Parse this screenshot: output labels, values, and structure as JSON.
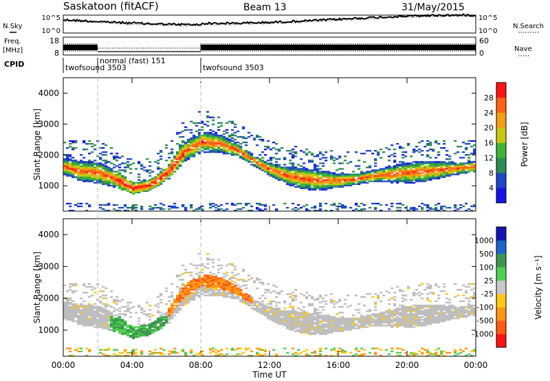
{
  "header": {
    "site": "Saskatoon (fitACF)",
    "beam": "Beam 13",
    "date": "31/May/2015"
  },
  "left_labels": {
    "nsky": "N.Sky",
    "freq_top": "Freq.",
    "freq_unit": "[MHz]",
    "cpid": "CPID"
  },
  "right_labels": {
    "nsearch": "N.Search",
    "nave": "Nave"
  },
  "noise_axis": {
    "top": "10^5",
    "bottom": "10^0"
  },
  "freq_axis": {
    "left_top": "18",
    "left_bottom": "8",
    "right_top": "60",
    "right_bottom": "0"
  },
  "cpid_segments": [
    {
      "label": "twofsound 3503",
      "start": 0,
      "end": 2
    },
    {
      "label": "normal (fast) 151",
      "start": 2,
      "end": 8
    },
    {
      "label": "twofsound 3503",
      "start": 8,
      "end": 24
    }
  ],
  "x_axis": {
    "label": "Time UT",
    "ticks": [
      "00:00",
      "04:00",
      "08:00",
      "12:00",
      "16:00",
      "20:00",
      "00:00"
    ]
  },
  "colors": {
    "power_scale": [
      "#1414e6",
      "#1e46c8",
      "#2e8b57",
      "#3cb43c",
      "#c8c814",
      "#f0a014",
      "#ff6414",
      "#ff1414"
    ],
    "velocity_scale": [
      "#ff1414",
      "#ff5a14",
      "#ff9614",
      "#ffc814",
      "#c8c8c8",
      "#50d050",
      "#3c9650",
      "#1e64c8",
      "#1414b4"
    ],
    "ground_scatter": "#bebebe"
  },
  "chart_data": [
    {
      "type": "heatmap",
      "name": "power",
      "ylabel": "Slant Range [km]",
      "y_ticks": [
        "1000",
        "2000",
        "3000",
        "4000"
      ],
      "ylim": [
        180,
        4500
      ],
      "xlim": [
        0,
        24
      ],
      "colorbar_label": "Power [dB]",
      "colorbar_ticks": [
        "4",
        "8",
        "12",
        "16",
        "20",
        "24",
        "28"
      ],
      "colorbar_range": [
        0,
        32
      ],
      "main_band_center_km": {
        "hours": [
          0,
          1,
          2,
          3,
          4,
          5,
          6,
          7,
          8,
          9,
          10,
          11,
          12,
          13,
          14,
          15,
          16,
          17,
          18,
          19,
          20,
          21,
          22,
          23,
          24
        ],
        "range": [
          1600,
          1450,
          1400,
          1200,
          900,
          1000,
          1400,
          2100,
          2400,
          2350,
          2150,
          1800,
          1500,
          1300,
          1200,
          1150,
          1150,
          1200,
          1300,
          1350,
          1400,
          1450,
          1500,
          1550,
          1600
        ]
      }
    },
    {
      "type": "heatmap",
      "name": "velocity",
      "ylabel": "Slant Range [km]",
      "y_ticks": [
        "1000",
        "2000",
        "3000",
        "4000"
      ],
      "ylim": [
        180,
        4500
      ],
      "xlim": [
        0,
        24
      ],
      "colorbar_label": "Velocity [m s⁻¹]",
      "colorbar_ticks": [
        "1000",
        "500",
        "100",
        "25",
        "-25",
        "-100",
        "-500",
        "-1000"
      ],
      "colorbar_values": [
        -1000,
        -500,
        -100,
        -25,
        25,
        100,
        500,
        1000
      ]
    }
  ]
}
